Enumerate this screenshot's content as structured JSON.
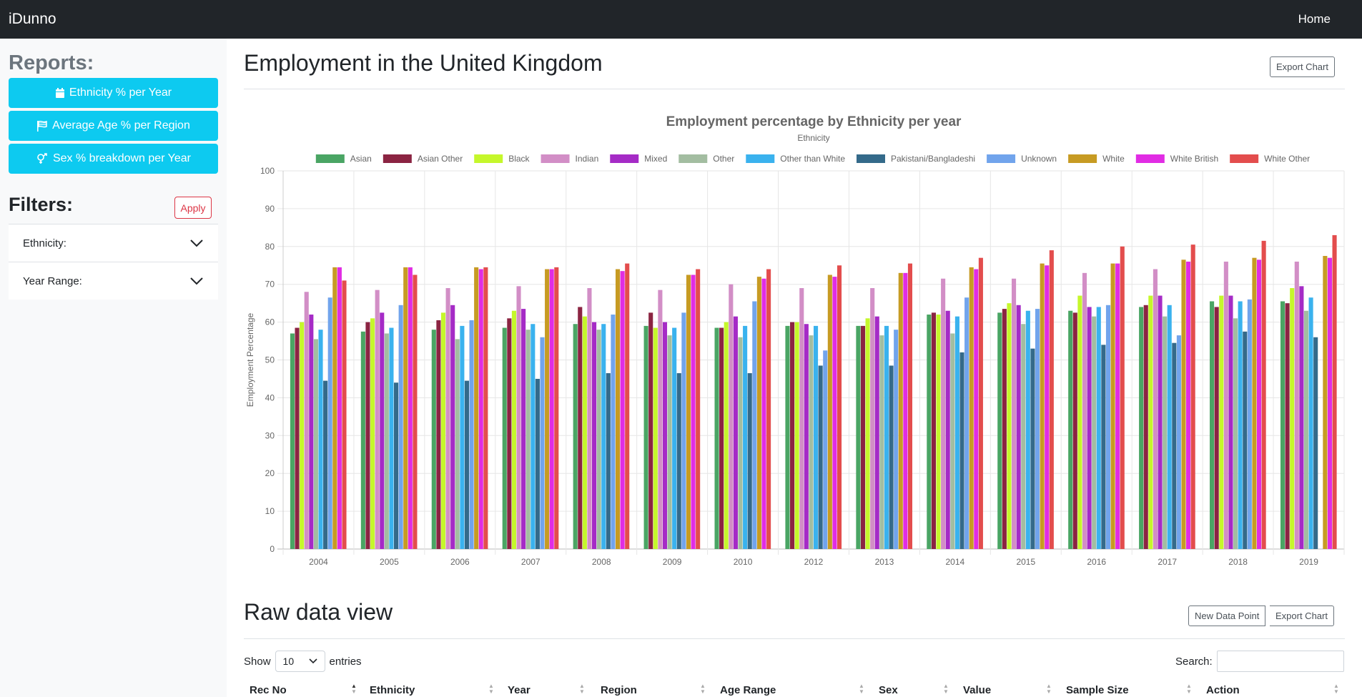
{
  "app": {
    "brand": "iDunno",
    "nav_home": "Home"
  },
  "sidebar": {
    "reports_heading": "Reports:",
    "report_buttons": [
      {
        "label": "Ethnicity % per Year",
        "icon": "calendar-icon"
      },
      {
        "label": "Average Age % per Region",
        "icon": "flag-icon"
      },
      {
        "label": "Sex % breakdown per Year",
        "icon": "gender-icon"
      }
    ],
    "filters_heading": "Filters:",
    "apply_label": "Apply",
    "filters": [
      {
        "label": "Ethnicity:"
      },
      {
        "label": "Year Range:"
      }
    ]
  },
  "main": {
    "title": "Employment in the United Kingdom",
    "export_chart_label": "Export Chart",
    "raw_title": "Raw data view",
    "new_data_point_label": "New Data Point",
    "export_chart_label_2": "Export Chart",
    "show_label": "Show",
    "entries_value": "10",
    "entries_label": "entries",
    "search_label": "Search:",
    "columns": [
      "Rec No",
      "Ethnicity",
      "Year",
      "Region",
      "Age Range",
      "Sex",
      "Value",
      "Sample Size",
      "Action"
    ]
  },
  "chart_data": {
    "type": "bar",
    "title": "Employment percentage by Ethnicity per year",
    "legend_title": "Ethnicity",
    "ylabel": "Employment Percentage",
    "xlabel": "",
    "ylim": [
      0,
      100
    ],
    "yticks": [
      0,
      10,
      20,
      30,
      40,
      50,
      60,
      70,
      80,
      90,
      100
    ],
    "grid": true,
    "legend_position": "top",
    "categories": [
      "2004",
      "2005",
      "2006",
      "2007",
      "2008",
      "2009",
      "2010",
      "2012",
      "2013",
      "2014",
      "2015",
      "2016",
      "2017",
      "2018",
      "2019"
    ],
    "series": [
      {
        "name": "Asian",
        "color": "#4aa564",
        "values": [
          57,
          57.5,
          58,
          58.5,
          59.5,
          59,
          58.5,
          59,
          59,
          62,
          62.5,
          63,
          64,
          65.5,
          65.5
        ]
      },
      {
        "name": "Asian Other",
        "color": "#8b2442",
        "values": [
          58.5,
          60,
          60.5,
          61,
          64,
          62.5,
          58.5,
          60,
          59,
          62.5,
          63.5,
          62.5,
          64.5,
          64,
          65
        ]
      },
      {
        "name": "Black",
        "color": "#c5f72b",
        "values": [
          60,
          61,
          62.5,
          63,
          61.5,
          58.5,
          60,
          60,
          61,
          62,
          65,
          67,
          67,
          67,
          69
        ]
      },
      {
        "name": "Indian",
        "color": "#d28ec6",
        "values": [
          68,
          68.5,
          69,
          69.5,
          69,
          68.5,
          70,
          69,
          69,
          71.5,
          71.5,
          73,
          74,
          76,
          76
        ]
      },
      {
        "name": "Mixed",
        "color": "#a52bc6",
        "values": [
          62,
          62.5,
          64.5,
          63.5,
          60,
          60,
          61.5,
          59.5,
          61.5,
          63,
          64.5,
          64,
          67,
          67,
          69.5
        ]
      },
      {
        "name": "Other",
        "color": "#a3bda1",
        "values": [
          55.5,
          57,
          55.5,
          58,
          58,
          56.5,
          56,
          56.5,
          56.5,
          57,
          59.5,
          61.5,
          61.5,
          61,
          63
        ]
      },
      {
        "name": "Other than White",
        "color": "#3ab2ee",
        "values": [
          58,
          58.5,
          59,
          59.5,
          59.5,
          58.5,
          59,
          59,
          59,
          61.5,
          63,
          64,
          64.5,
          65.5,
          66.5
        ]
      },
      {
        "name": "Pakistani/Bangladeshi",
        "color": "#346a8a",
        "values": [
          44.5,
          44,
          44.5,
          45,
          46.5,
          46.5,
          46.5,
          48.5,
          48.5,
          52,
          53,
          54,
          54.5,
          57.5,
          56
        ]
      },
      {
        "name": "Unknown",
        "color": "#71a4ec",
        "values": [
          66.5,
          64.5,
          60.5,
          56,
          62,
          62.5,
          65.5,
          52.5,
          58,
          66.5,
          63.5,
          64.5,
          56.5,
          66,
          null
        ]
      },
      {
        "name": "White",
        "color": "#c79b23",
        "values": [
          74.5,
          74.5,
          74.5,
          74,
          74,
          72.5,
          72,
          72.5,
          73,
          74.5,
          75.5,
          75.5,
          76.5,
          77,
          77.5
        ]
      },
      {
        "name": "White British",
        "color": "#e12ce4",
        "values": [
          74.5,
          74.5,
          74,
          74,
          73.5,
          72.5,
          71.5,
          72,
          73,
          74,
          75,
          75.5,
          76,
          76.5,
          77
        ]
      },
      {
        "name": "White Other",
        "color": "#e34d4d",
        "values": [
          71,
          72.5,
          74.5,
          74.5,
          75.5,
          74,
          74,
          75,
          75.5,
          77,
          79,
          80,
          80.5,
          81.5,
          83
        ]
      }
    ]
  }
}
